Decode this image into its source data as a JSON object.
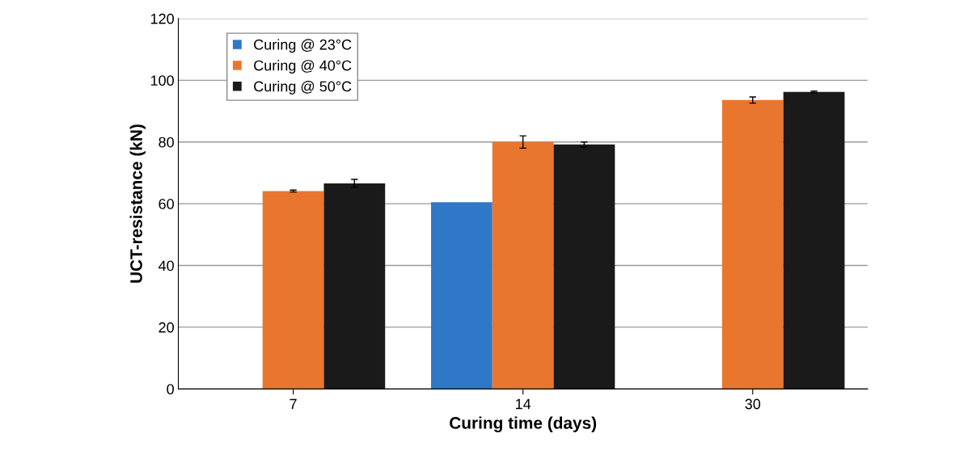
{
  "chart_data": {
    "type": "bar",
    "xlabel": "Curing time (days)",
    "ylabel": "UCT-resistance (kN)",
    "categories": [
      "7",
      "14",
      "30"
    ],
    "series": [
      {
        "name": "Curing @ 23°C",
        "color": "#2f78c8",
        "values": [
          null,
          60.5,
          null
        ],
        "errors": [
          null,
          null,
          null
        ]
      },
      {
        "name": "Curing @ 40°C",
        "color": "#e9762e",
        "values": [
          64.1,
          80.0,
          93.6
        ],
        "errors": [
          0.3,
          2,
          1
        ]
      },
      {
        "name": "Curing @ 50°C",
        "color": "#1a1a1a",
        "values": [
          66.6,
          79.2,
          96.2
        ],
        "errors": [
          1.3,
          0.8,
          0.3
        ]
      }
    ],
    "ylim": [
      0,
      120
    ],
    "yticks": [
      0,
      20,
      40,
      60,
      80,
      100,
      120
    ],
    "grid": "y",
    "legend": "top left"
  }
}
